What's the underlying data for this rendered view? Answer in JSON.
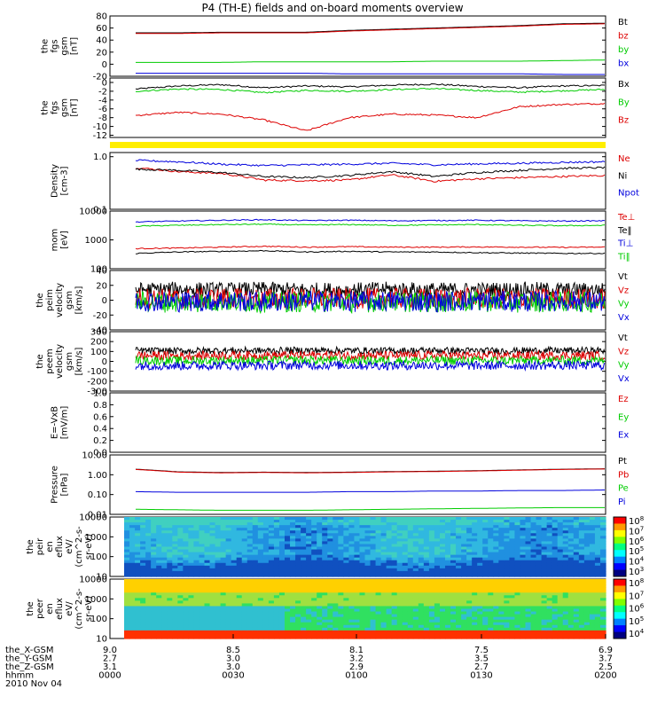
{
  "title": "P4 (TH-E) fields and on-board moments overview",
  "colors": {
    "black": "#000000",
    "red": "#dd0000",
    "green": "#00cc00",
    "blue": "#0000dd",
    "yellow": "#ffee00"
  },
  "chart_data": [
    {
      "type": "line",
      "id": "p1",
      "ylabel": [
        "the",
        "fgs",
        "gsm",
        "[nT]"
      ],
      "yticks": [
        "80",
        "60",
        "40",
        "20",
        "0",
        "-20"
      ],
      "ylim": [
        -20,
        80
      ],
      "series": [
        {
          "name": "Bt",
          "color": "black",
          "values": [
            52,
            52,
            53,
            53,
            53,
            56,
            58,
            60,
            62,
            64,
            67,
            68
          ]
        },
        {
          "name": "bz",
          "color": "red",
          "values": [
            51,
            51,
            52,
            52,
            52,
            55,
            57,
            59,
            61,
            63,
            66,
            67
          ]
        },
        {
          "name": "by",
          "color": "green",
          "values": [
            3,
            3,
            3,
            4,
            4,
            4,
            4,
            5,
            5,
            5,
            6,
            7
          ]
        },
        {
          "name": "bx",
          "color": "blue",
          "values": [
            -15,
            -15,
            -15,
            -15,
            -15,
            -16,
            -16,
            -16,
            -16,
            -16,
            -17,
            -17
          ]
        }
      ]
    },
    {
      "type": "line",
      "id": "p2",
      "ylabel": [
        "the",
        "fgs",
        "gsm",
        "[nT]"
      ],
      "yticks": [
        "0",
        "-2",
        "-4",
        "-6",
        "-8",
        "-10",
        "-12"
      ],
      "ylim": [
        -12.5,
        1
      ],
      "series": [
        {
          "name": "Bx",
          "color": "black",
          "values": [
            -1.5,
            -0.8,
            -0.5,
            -1.2,
            -0.8,
            -1.0,
            -0.6,
            -0.4,
            -0.9,
            -1.2,
            -0.8,
            -0.7
          ]
        },
        {
          "name": "By",
          "color": "green",
          "values": [
            -2.0,
            -1.5,
            -1.6,
            -2.3,
            -1.8,
            -2.0,
            -1.6,
            -1.4,
            -1.8,
            -2.2,
            -1.9,
            -1.6
          ]
        },
        {
          "name": "Bz",
          "color": "red",
          "values": [
            -7.5,
            -6.8,
            -7.2,
            -8.5,
            -11.0,
            -8.0,
            -7.2,
            -7.4,
            -8.0,
            -5.5,
            -5.0,
            -4.8
          ]
        }
      ]
    },
    {
      "type": "bar",
      "id": "flags",
      "ylabel": [],
      "yticks": []
    },
    {
      "type": "line",
      "id": "p3",
      "ylabel": [
        "Density",
        "[cm-3]"
      ],
      "yticks": [
        "1.0",
        "0.1"
      ],
      "ylim": [
        0.1,
        1.2
      ],
      "series": [
        {
          "name": "Ne",
          "color": "red",
          "values": [
            0.62,
            0.52,
            0.48,
            0.36,
            0.35,
            0.36,
            0.45,
            0.34,
            0.38,
            0.4,
            0.42,
            0.44
          ]
        },
        {
          "name": "Ni",
          "color": "black",
          "values": [
            0.58,
            0.55,
            0.5,
            0.42,
            0.4,
            0.44,
            0.52,
            0.42,
            0.5,
            0.55,
            0.6,
            0.62
          ]
        },
        {
          "name": "Npot",
          "color": "blue",
          "values": [
            0.85,
            0.8,
            0.72,
            0.68,
            0.7,
            0.72,
            0.75,
            0.7,
            0.73,
            0.75,
            0.78,
            0.8
          ]
        }
      ]
    },
    {
      "type": "line",
      "id": "p4",
      "ylabel": [
        "mom",
        "[eV]"
      ],
      "yticks": [
        "10000",
        "1000",
        "100"
      ],
      "ylim": [
        100,
        10000
      ],
      "series": [
        {
          "name": "Te⊥",
          "color": "red",
          "values": [
            500,
            520,
            560,
            600,
            560,
            580,
            560,
            560,
            570,
            560,
            550,
            560
          ]
        },
        {
          "name": "Te‖",
          "color": "black",
          "values": [
            340,
            380,
            400,
            420,
            380,
            400,
            380,
            380,
            360,
            350,
            340,
            340
          ]
        },
        {
          "name": "Ti⊥",
          "color": "blue",
          "values": [
            4200,
            4500,
            4800,
            5000,
            4700,
            4800,
            4600,
            4700,
            4800,
            4600,
            4500,
            4600
          ]
        },
        {
          "name": "Ti‖",
          "color": "green",
          "values": [
            3000,
            3200,
            3400,
            3500,
            3300,
            3400,
            3200,
            3300,
            3400,
            3200,
            3100,
            3200
          ]
        }
      ]
    },
    {
      "type": "line",
      "id": "p5",
      "ylabel": [
        "the",
        "peim",
        "velocity",
        "gsm",
        "[km/s]"
      ],
      "yticks": [
        "40",
        "20",
        "0",
        "-20",
        "-40"
      ],
      "ylim": [
        -40,
        40
      ],
      "series": [
        {
          "name": "Vt",
          "color": "black",
          "values": [
            14,
            15,
            14,
            15,
            14,
            14,
            15,
            14,
            14,
            15,
            14,
            14
          ]
        },
        {
          "name": "Vz",
          "color": "red",
          "values": [
            3,
            2,
            3,
            2,
            3,
            2,
            3,
            2,
            3,
            2,
            3,
            2
          ]
        },
        {
          "name": "Vy",
          "color": "green",
          "values": [
            -2,
            -3,
            -2,
            -3,
            -2,
            -3,
            -2,
            -3,
            -2,
            -3,
            -2,
            -3
          ]
        },
        {
          "name": "Vx",
          "color": "blue",
          "values": [
            -1,
            -2,
            -1,
            -2,
            -1,
            -2,
            -1,
            -2,
            -1,
            -2,
            -1,
            -2
          ]
        }
      ]
    },
    {
      "type": "line",
      "id": "p6",
      "ylabel": [
        "the",
        "peem",
        "velocity",
        "gsm",
        "[km/s]"
      ],
      "yticks": [
        "300",
        "200",
        "100",
        "0",
        "-100",
        "-200",
        "-300"
      ],
      "ylim": [
        -300,
        300
      ],
      "series": [
        {
          "name": "Vt",
          "color": "black",
          "values": [
            110,
            105,
            110,
            108,
            112,
            110,
            108,
            110,
            106,
            108,
            110,
            108
          ]
        },
        {
          "name": "Vz",
          "color": "red",
          "values": [
            60,
            55,
            60,
            58,
            62,
            60,
            58,
            60,
            56,
            58,
            60,
            58
          ]
        },
        {
          "name": "Vy",
          "color": "green",
          "values": [
            10,
            5,
            10,
            8,
            12,
            10,
            8,
            10,
            6,
            8,
            10,
            8
          ]
        },
        {
          "name": "Vx",
          "color": "blue",
          "values": [
            -40,
            -45,
            -40,
            -42,
            -38,
            -40,
            -42,
            -40,
            -44,
            -42,
            -40,
            -42
          ]
        }
      ]
    },
    {
      "type": "line",
      "id": "p7",
      "ylabel": [
        "E=-VxB",
        "[mV/m]"
      ],
      "yticks": [
        "1.0",
        "0.8",
        "0.6",
        "0.4",
        "0.2",
        "0.0"
      ],
      "ylim": [
        0,
        1
      ],
      "series": [
        {
          "name": "Ez",
          "color": "red",
          "values": []
        },
        {
          "name": "Ey",
          "color": "green",
          "values": []
        },
        {
          "name": "Ex",
          "color": "blue",
          "values": []
        }
      ]
    },
    {
      "type": "line",
      "id": "p8",
      "ylabel": [
        "Pressure",
        "[nPa]"
      ],
      "yticks": [
        "10.00",
        "1.00",
        "0.10",
        "0.01"
      ],
      "ylim": [
        0.01,
        10
      ],
      "series": [
        {
          "name": "Pt",
          "color": "black",
          "values": [
            1.9,
            1.4,
            1.3,
            1.35,
            1.3,
            1.35,
            1.45,
            1.5,
            1.6,
            1.75,
            1.9,
            2.0
          ]
        },
        {
          "name": "Pb",
          "color": "red",
          "values": [
            1.85,
            1.35,
            1.25,
            1.3,
            1.25,
            1.3,
            1.4,
            1.45,
            1.55,
            1.7,
            1.85,
            1.95
          ]
        },
        {
          "name": "Pe",
          "color": "green",
          "values": [
            0.018,
            0.017,
            0.016,
            0.016,
            0.016,
            0.017,
            0.018,
            0.019,
            0.02,
            0.021,
            0.022,
            0.022
          ]
        },
        {
          "name": "Pi",
          "color": "blue",
          "values": [
            0.14,
            0.13,
            0.13,
            0.13,
            0.13,
            0.14,
            0.14,
            0.15,
            0.15,
            0.16,
            0.16,
            0.17
          ]
        }
      ]
    },
    {
      "type": "heatmap",
      "id": "p9",
      "ylabel": [
        "the",
        "peir",
        "en",
        "eflux",
        "eV/",
        "(cm^2-s-",
        "sr-eV)"
      ],
      "yticks": [
        "10000",
        "1000",
        "100",
        "10"
      ],
      "ylim": [
        10,
        10000
      ],
      "colorbar_ticks": [
        "10^8",
        "10^7",
        "10^6",
        "10^5",
        "10^4",
        "10^3"
      ]
    },
    {
      "type": "heatmap",
      "id": "p10",
      "ylabel": [
        "the",
        "peer",
        "en",
        "eflux",
        "eV/",
        "(cm^2-s-",
        "sr-eV)"
      ],
      "yticks": [
        "10000",
        "1000",
        "100",
        "10"
      ],
      "ylim": [
        10,
        10000
      ],
      "colorbar_ticks": [
        "10^8",
        "10^7",
        "10^6",
        "10^5",
        "10^4"
      ]
    }
  ],
  "xaxis": {
    "rows": [
      {
        "label": "the_X-GSM",
        "values": [
          "9.0",
          "8.5",
          "8.1",
          "7.5",
          "6.9"
        ]
      },
      {
        "label": "the_Y-GSM",
        "values": [
          "2.7",
          "3.0",
          "3.2",
          "3.5",
          "3.7"
        ]
      },
      {
        "label": "the_Z-GSM",
        "values": [
          "3.1",
          "3.0",
          "2.9",
          "2.7",
          "2.5"
        ]
      },
      {
        "label": "hhmm",
        "values": [
          "0000",
          "0030",
          "0100",
          "0130",
          "0200"
        ]
      }
    ],
    "date": "2010 Nov 04"
  }
}
